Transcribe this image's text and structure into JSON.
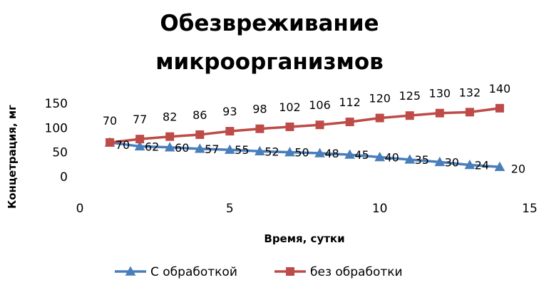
{
  "chart_data": {
    "type": "line",
    "title_lines": [
      "Обезвреживание",
      "микроорганизмов"
    ],
    "xlabel": "Время, сутки",
    "ylabel": "Концетрация, мг",
    "x_ticks": [
      "0",
      "5",
      "10",
      "15"
    ],
    "y_ticks": [
      "0",
      "50",
      "100",
      "150"
    ],
    "xlim": [
      0,
      15
    ],
    "ylim": [
      0,
      150
    ],
    "grid": false,
    "legend_position": "bottom",
    "x": [
      1,
      2,
      3,
      4,
      5,
      6,
      7,
      8,
      9,
      10,
      11,
      12,
      13,
      14
    ],
    "series": [
      {
        "name": "С обработкой",
        "marker": "triangle",
        "color": "#4a7ebb",
        "values": [
          70,
          62,
          60,
          57,
          55,
          52,
          50,
          48,
          45,
          40,
          35,
          30,
          24,
          20
        ],
        "labels": [
          "70",
          "62",
          "60",
          "57",
          "55",
          "52",
          "50",
          "48",
          "45",
          "40",
          "35",
          "30",
          "24",
          "20"
        ]
      },
      {
        "name": "без обработки",
        "marker": "square",
        "color": "#be4b48",
        "values": [
          70,
          77,
          82,
          86,
          93,
          98,
          102,
          106,
          112,
          120,
          125,
          130,
          132,
          140
        ],
        "labels": [
          "70",
          "77",
          "82",
          "86",
          "93",
          "98",
          "102",
          "106",
          "112",
          "120",
          "125",
          "130",
          "132",
          "140"
        ]
      }
    ]
  }
}
